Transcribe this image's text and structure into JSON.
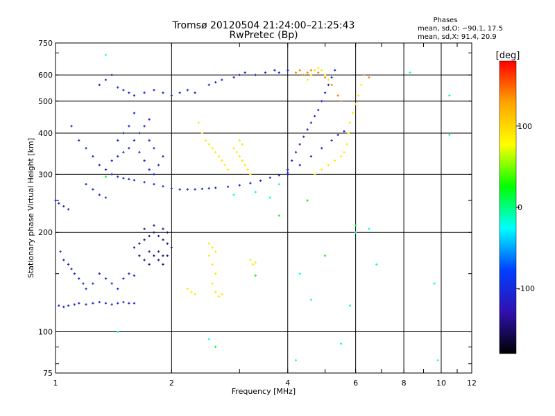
{
  "chart_data": {
    "type": "scatter",
    "title": "Tromsø 20120504 21:24:00–21:25:43",
    "subtitle": "RwPretec (Bp)",
    "xlabel": "Frequency [MHz]",
    "ylabel": "Stationary phase Virtual Height [km]",
    "x_scale": "log",
    "y_scale": "log",
    "xlim": [
      1,
      12
    ],
    "ylim": [
      75,
      750
    ],
    "x_ticks": [
      1,
      2,
      4,
      6,
      8,
      10,
      12
    ],
    "y_ticks": [
      75,
      100,
      200,
      300,
      400,
      500,
      600,
      750
    ],
    "grid": true,
    "stats": {
      "heading": "Phases",
      "line1": "mean, sd,O:  −90.1, 17.5",
      "line2": "mean, sd,X:  91.4, 20.9"
    },
    "colorbar": {
      "label": "[deg]",
      "range": [
        -180,
        180
      ],
      "ticks": [
        100,
        0,
        -100
      ],
      "colors": [
        "#ff0000",
        "#ffa500",
        "#ffff00",
        "#00ff00",
        "#00ffff",
        "#0040ff",
        "#3010b0",
        "#000000"
      ]
    },
    "series": [
      {
        "phase": -105,
        "points": [
          [
            1.3,
            560
          ],
          [
            1.35,
            580
          ],
          [
            1.4,
            600
          ],
          [
            1.45,
            550
          ],
          [
            1.5,
            540
          ],
          [
            1.55,
            530
          ],
          [
            1.6,
            520
          ],
          [
            1.7,
            530
          ],
          [
            1.8,
            540
          ],
          [
            1.9,
            530
          ],
          [
            2.0,
            520
          ],
          [
            2.1,
            530
          ],
          [
            2.2,
            540
          ],
          [
            2.3,
            530
          ],
          [
            2.5,
            560
          ],
          [
            2.6,
            570
          ],
          [
            2.7,
            580
          ],
          [
            2.9,
            590
          ],
          [
            3.0,
            600
          ],
          [
            3.1,
            610
          ],
          [
            3.3,
            600
          ],
          [
            3.5,
            610
          ],
          [
            3.7,
            620
          ],
          [
            3.8,
            610
          ],
          [
            4.0,
            620
          ],
          [
            1.1,
            420
          ],
          [
            1.15,
            380
          ],
          [
            1.2,
            360
          ],
          [
            1.25,
            340
          ],
          [
            1.3,
            320
          ],
          [
            1.35,
            310
          ],
          [
            1.4,
            300
          ],
          [
            1.45,
            295
          ],
          [
            1.5,
            292
          ],
          [
            1.55,
            290
          ],
          [
            1.6,
            288
          ],
          [
            1.7,
            284
          ],
          [
            1.8,
            280
          ],
          [
            1.9,
            276
          ],
          [
            2.0,
            272
          ],
          [
            2.1,
            270
          ],
          [
            2.2,
            270
          ],
          [
            2.3,
            270
          ],
          [
            2.4,
            271
          ],
          [
            2.5,
            272
          ],
          [
            2.6,
            273
          ],
          [
            2.8,
            275
          ],
          [
            3.0,
            278
          ],
          [
            3.2,
            282
          ],
          [
            3.4,
            287
          ],
          [
            3.6,
            293
          ],
          [
            3.8,
            298
          ],
          [
            4.0,
            303
          ],
          [
            4.0,
            300
          ],
          [
            4.3,
            320
          ],
          [
            4.6,
            340
          ],
          [
            4.9,
            360
          ],
          [
            5.2,
            380
          ],
          [
            5.4,
            395
          ],
          [
            5.6,
            405
          ],
          [
            4.0,
            310
          ],
          [
            4.1,
            330
          ],
          [
            4.2,
            350
          ],
          [
            4.3,
            370
          ],
          [
            4.4,
            390
          ],
          [
            4.5,
            410
          ],
          [
            4.6,
            430
          ],
          [
            4.7,
            450
          ],
          [
            4.8,
            470
          ],
          [
            4.9,
            500
          ],
          [
            5.0,
            530
          ],
          [
            5.1,
            560
          ],
          [
            5.2,
            590
          ],
          [
            5.3,
            620
          ],
          [
            1.4,
            330
          ],
          [
            1.45,
            340
          ],
          [
            1.5,
            350
          ],
          [
            1.55,
            360
          ],
          [
            1.6,
            380
          ],
          [
            1.65,
            400
          ],
          [
            1.7,
            420
          ],
          [
            1.75,
            440
          ],
          [
            1.6,
            460
          ],
          [
            1.55,
            420
          ],
          [
            1.5,
            400
          ],
          [
            1.45,
            380
          ],
          [
            1.65,
            350
          ],
          [
            1.7,
            330
          ],
          [
            1.75,
            310
          ],
          [
            1.8,
            300
          ],
          [
            1.85,
            320
          ],
          [
            1.9,
            340
          ],
          [
            1.8,
            360
          ],
          [
            1.75,
            380
          ],
          [
            1.2,
            280
          ],
          [
            1.25,
            270
          ],
          [
            1.3,
            260
          ],
          [
            1.35,
            255
          ],
          [
            1.03,
            175
          ],
          [
            1.05,
            165
          ],
          [
            1.08,
            160
          ],
          [
            1.1,
            155
          ],
          [
            1.12,
            150
          ],
          [
            1.15,
            145
          ],
          [
            1.18,
            140
          ],
          [
            1.2,
            135
          ],
          [
            1.25,
            140
          ],
          [
            1.3,
            150
          ],
          [
            1.35,
            145
          ],
          [
            1.4,
            140
          ],
          [
            1.45,
            135
          ],
          [
            1.5,
            145
          ],
          [
            1.55,
            150
          ],
          [
            1.6,
            148
          ],
          [
            1.02,
            120
          ],
          [
            1.05,
            119
          ],
          [
            1.08,
            120
          ],
          [
            1.12,
            121
          ],
          [
            1.15,
            122
          ],
          [
            1.2,
            121
          ],
          [
            1.25,
            122
          ],
          [
            1.3,
            123
          ],
          [
            1.35,
            122
          ],
          [
            1.4,
            121
          ],
          [
            1.45,
            122
          ],
          [
            1.5,
            123
          ],
          [
            1.55,
            122
          ],
          [
            1.6,
            122
          ],
          [
            1.0,
            250
          ],
          [
            1.02,
            245
          ],
          [
            1.05,
            240
          ],
          [
            1.08,
            235
          ]
        ]
      },
      {
        "phase": -140,
        "points": [
          [
            1.6,
            180
          ],
          [
            1.65,
            185
          ],
          [
            1.7,
            190
          ],
          [
            1.75,
            195
          ],
          [
            1.8,
            200
          ],
          [
            1.85,
            195
          ],
          [
            1.9,
            190
          ],
          [
            1.95,
            185
          ],
          [
            2.0,
            180
          ],
          [
            1.75,
            175
          ],
          [
            1.8,
            170
          ],
          [
            1.85,
            165
          ],
          [
            1.9,
            170
          ],
          [
            1.7,
            165
          ],
          [
            1.65,
            170
          ],
          [
            1.8,
            210
          ],
          [
            1.9,
            205
          ],
          [
            1.95,
            200
          ],
          [
            1.7,
            205
          ],
          [
            1.85,
            175
          ],
          [
            1.95,
            170
          ],
          [
            1.75,
            160
          ],
          [
            1.9,
            160
          ]
        ]
      },
      {
        "phase": 90,
        "points": [
          [
            2.35,
            430
          ],
          [
            2.4,
            400
          ],
          [
            2.45,
            380
          ],
          [
            2.5,
            370
          ],
          [
            2.55,
            360
          ],
          [
            2.6,
            350
          ],
          [
            2.65,
            340
          ],
          [
            2.7,
            330
          ],
          [
            2.75,
            320
          ],
          [
            2.8,
            310
          ],
          [
            2.9,
            360
          ],
          [
            2.95,
            350
          ],
          [
            3.0,
            340
          ],
          [
            3.05,
            330
          ],
          [
            3.1,
            320
          ],
          [
            3.15,
            310
          ],
          [
            3.2,
            300
          ],
          [
            3.0,
            380
          ],
          [
            3.05,
            370
          ],
          [
            4.7,
            300
          ],
          [
            4.9,
            310
          ],
          [
            5.1,
            320
          ],
          [
            5.3,
            330
          ],
          [
            5.5,
            340
          ],
          [
            5.6,
            350
          ],
          [
            5.7,
            370
          ],
          [
            5.75,
            400
          ],
          [
            5.8,
            430
          ],
          [
            5.9,
            460
          ],
          [
            6.0,
            490
          ],
          [
            6.1,
            520
          ],
          [
            6.2,
            560
          ],
          [
            4.5,
            580
          ],
          [
            4.6,
            600
          ],
          [
            4.7,
            620
          ],
          [
            4.8,
            630
          ],
          [
            4.9,
            620
          ],
          [
            5.0,
            600
          ],
          [
            5.1,
            580
          ],
          [
            2.5,
            185
          ],
          [
            2.55,
            180
          ],
          [
            2.6,
            175
          ],
          [
            2.5,
            170
          ],
          [
            2.55,
            160
          ],
          [
            2.6,
            150
          ],
          [
            2.55,
            140
          ],
          [
            2.6,
            132
          ],
          [
            2.65,
            128
          ],
          [
            2.7,
            130
          ],
          [
            2.2,
            135
          ],
          [
            2.25,
            132
          ],
          [
            2.3,
            130
          ],
          [
            3.2,
            165
          ],
          [
            3.25,
            160
          ],
          [
            3.3,
            162
          ]
        ]
      },
      {
        "phase": 140,
        "points": [
          [
            4.2,
            610
          ],
          [
            4.3,
            620
          ],
          [
            4.4,
            600
          ],
          [
            4.5,
            610
          ],
          [
            4.6,
            620
          ],
          [
            4.8,
            610
          ],
          [
            5.0,
            590
          ],
          [
            5.2,
            560
          ],
          [
            5.4,
            520
          ],
          [
            5.5,
            500
          ],
          [
            6.3,
            600
          ],
          [
            6.5,
            590
          ]
        ]
      },
      {
        "phase": -20,
        "points": [
          [
            1.35,
            690
          ],
          [
            1.45,
            100
          ],
          [
            2.5,
            95
          ],
          [
            4.2,
            82
          ],
          [
            5.5,
            92
          ],
          [
            6.0,
            200
          ],
          [
            6.5,
            205
          ],
          [
            9.8,
            82
          ],
          [
            10.5,
            520
          ],
          [
            2.9,
            260
          ],
          [
            3.3,
            265
          ],
          [
            3.6,
            255
          ],
          [
            3.8,
            280
          ],
          [
            4.3,
            150
          ],
          [
            4.6,
            125
          ],
          [
            5.8,
            120
          ],
          [
            6.8,
            160
          ],
          [
            8.3,
            610
          ],
          [
            9.6,
            140
          ],
          [
            10.5,
            395
          ]
        ]
      },
      {
        "phase": 20,
        "points": [
          [
            2.6,
            90
          ],
          [
            3.3,
            148
          ],
          [
            4.5,
            250
          ],
          [
            6.0,
            210
          ],
          [
            5.0,
            170
          ],
          [
            3.8,
            225
          ],
          [
            1.35,
            295
          ]
        ]
      }
    ]
  }
}
